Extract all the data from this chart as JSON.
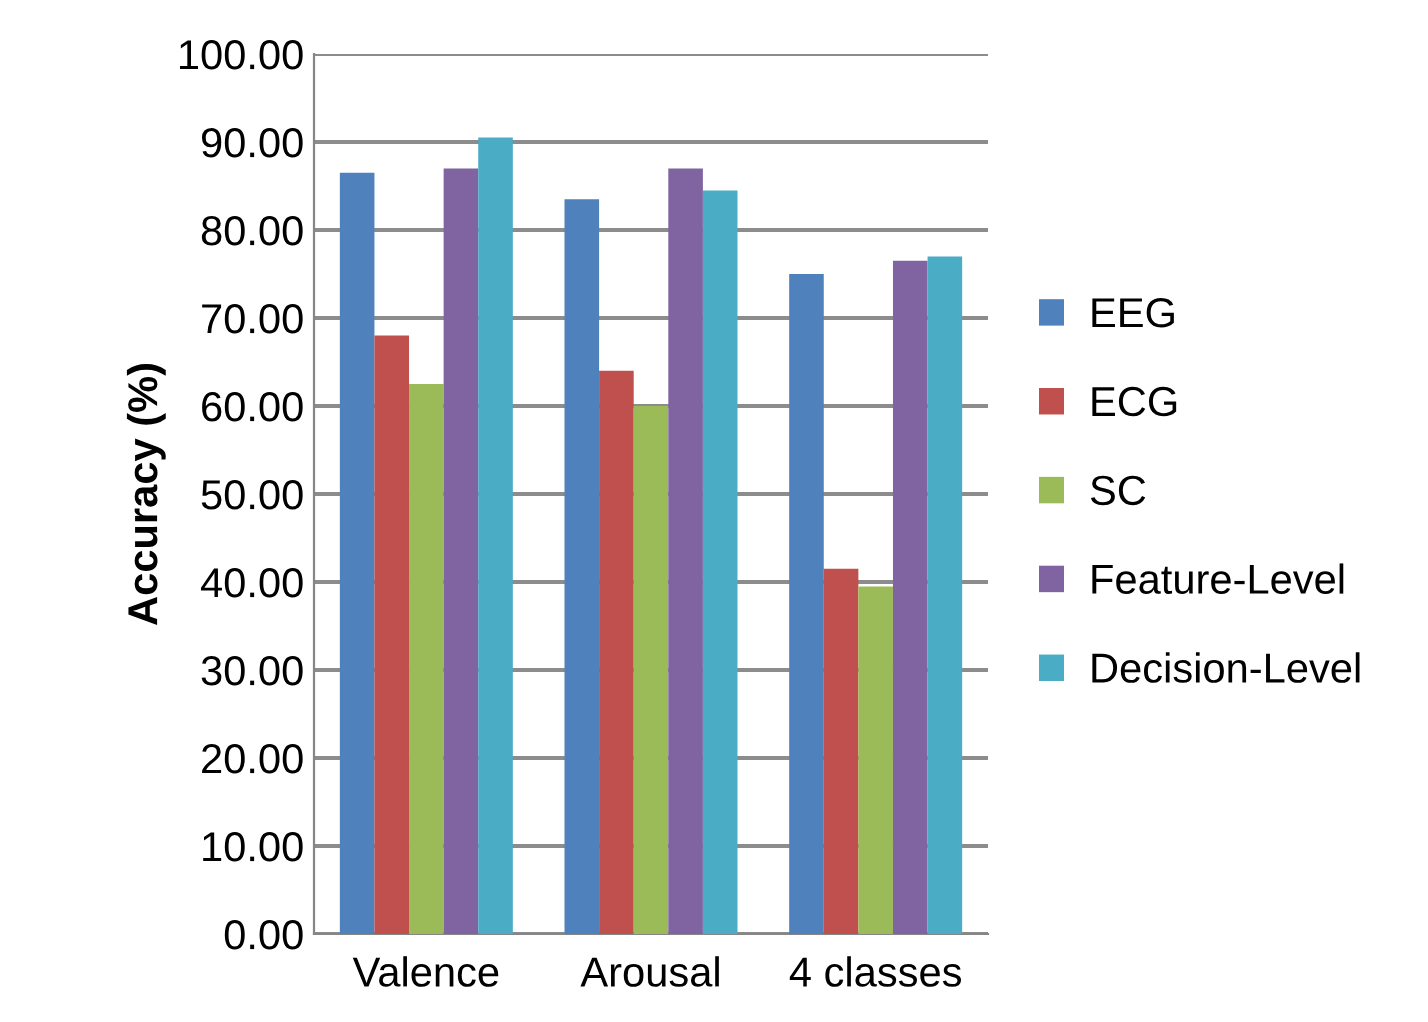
{
  "chart_data": {
    "type": "bar",
    "ylabel": "Accuracy (%)",
    "categories": [
      "Valence",
      "Arousal",
      "4 classes"
    ],
    "series": [
      {
        "name": "EEG",
        "color": "#4f81bd",
        "values": [
          86.5,
          83.5,
          75
        ]
      },
      {
        "name": "ECG",
        "color": "#c0504d",
        "values": [
          68,
          64,
          41.5
        ]
      },
      {
        "name": "SC",
        "color": "#9bbb59",
        "values": [
          62.5,
          60,
          39.5
        ]
      },
      {
        "name": "Feature-Level",
        "color": "#8064a2",
        "values": [
          87,
          87,
          76.5
        ]
      },
      {
        "name": "Decision-Level",
        "color": "#4bacc6",
        "values": [
          90.5,
          84.5,
          77
        ]
      }
    ],
    "ylim": [
      0,
      100
    ],
    "yticks": [
      {
        "value": 0,
        "label": "0.00"
      },
      {
        "value": 10,
        "label": "10.00"
      },
      {
        "value": 20,
        "label": "20.00"
      },
      {
        "value": 30,
        "label": "30.00"
      },
      {
        "value": 40,
        "label": "40.00"
      },
      {
        "value": 50,
        "label": "50.00"
      },
      {
        "value": 60,
        "label": "60.00"
      },
      {
        "value": 70,
        "label": "70.00"
      },
      {
        "value": 80,
        "label": "80.00"
      },
      {
        "value": 90,
        "label": "90.00"
      },
      {
        "value": 100,
        "label": "100.00"
      }
    ],
    "grid": "y",
    "legend": "right"
  }
}
